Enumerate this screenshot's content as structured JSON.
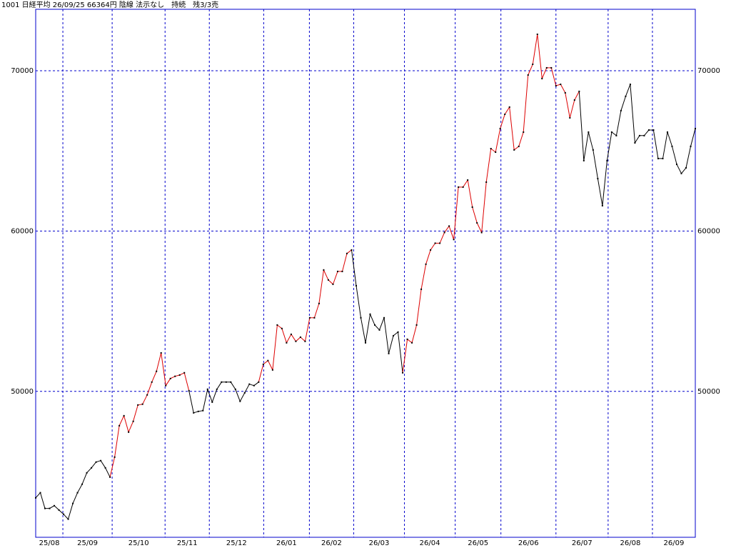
{
  "chart_data": {
    "type": "line",
    "title": "1001 日経平均 26/09/25 66364円 陰線 法示なし　持続　残3/3売",
    "xlim": [
      0,
      142
    ],
    "xticks": [
      {
        "value": 0,
        "label": "25/08"
      },
      {
        "value": 5.85,
        "label": "25/09"
      },
      {
        "value": 16.46,
        "label": "25/10"
      },
      {
        "value": 27.85,
        "label": "25/11"
      },
      {
        "value": 37.38,
        "label": "25/12"
      },
      {
        "value": 49.08,
        "label": "26/01"
      },
      {
        "value": 58.92,
        "label": "26/02"
      },
      {
        "value": 68.46,
        "label": "26/03"
      },
      {
        "value": 79.38,
        "label": "26/04"
      },
      {
        "value": 90.31,
        "label": "26/05"
      },
      {
        "value": 100.15,
        "label": "26/06"
      },
      {
        "value": 112.0,
        "label": "26/07"
      },
      {
        "value": 123.23,
        "label": "26/08"
      },
      {
        "value": 132.77,
        "label": "26/09"
      }
    ],
    "ylim": [
      40900,
      73830
    ],
    "yticks": [
      50000,
      60000,
      70000
    ],
    "grid": true,
    "grid_color": "#0000cc",
    "marker_color": "#000000",
    "color_runs": [
      {
        "start": 0,
        "color": "#000000"
      },
      {
        "start": 16,
        "color": "#dd0000"
      },
      {
        "start": 33,
        "color": "#000000"
      },
      {
        "start": 48,
        "color": "#dd0000"
      },
      {
        "start": 68,
        "color": "#000000"
      },
      {
        "start": 79,
        "color": "#dd0000"
      },
      {
        "start": 117,
        "color": "#000000"
      }
    ],
    "values": [
      43360,
      43680,
      42700,
      42700,
      42870,
      42600,
      42340,
      42030,
      43010,
      43680,
      44210,
      44920,
      45230,
      45590,
      45680,
      45230,
      44650,
      45900,
      47860,
      48480,
      47460,
      48130,
      49150,
      49200,
      49780,
      50580,
      51250,
      52400,
      50360,
      50800,
      50940,
      51020,
      51160,
      50040,
      48660,
      48750,
      48800,
      50130,
      49330,
      50130,
      50580,
      50580,
      50580,
      50130,
      49380,
      49910,
      50450,
      50360,
      50580,
      51690,
      51920,
      51340,
      54140,
      53920,
      53030,
      53560,
      53120,
      53380,
      53120,
      54590,
      54590,
      55480,
      57570,
      56950,
      56680,
      57480,
      57480,
      58600,
      58820,
      56590,
      54590,
      53030,
      54810,
      54140,
      53830,
      54590,
      52360,
      53470,
      53700,
      51160,
      53250,
      53030,
      54140,
      56370,
      57930,
      58820,
      59240,
      59240,
      59910,
      60310,
      59470,
      62740,
      62740,
      63180,
      61490,
      60510,
      59910,
      63050,
      65140,
      64920,
      66390,
      67280,
      67730,
      65060,
      65280,
      66170,
      69730,
      70400,
      72270,
      69510,
      70180,
      70180,
      69060,
      69150,
      68620,
      67060,
      68170,
      68710,
      64390,
      66170,
      65060,
      63270,
      61580,
      64390,
      66170,
      65950,
      67510,
      68400,
      69150,
      65500,
      65950,
      65950,
      66300,
      66300,
      64520,
      64520,
      66170,
      65280,
      64160,
      63590,
      63940,
      65280,
      66390
    ]
  }
}
